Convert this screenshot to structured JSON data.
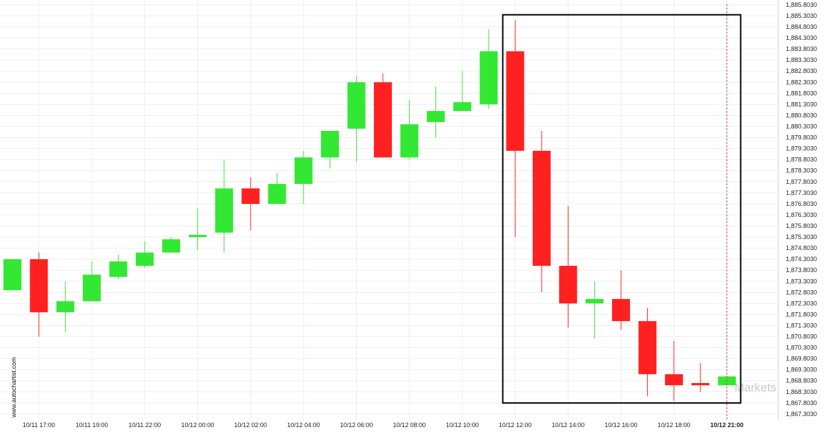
{
  "chart_data": {
    "type": "candlestick",
    "title": "",
    "xlabel": "",
    "ylabel": "",
    "ylim": [
      1867.2,
      1885.9
    ],
    "grid": true,
    "y_ticks": [
      "1,885.8030",
      "1,885.3030",
      "1,884.8030",
      "1,884.3030",
      "1,883.8030",
      "1,883.3030",
      "1,882.8030",
      "1,882.3030",
      "1,881.8030",
      "1,881.3030",
      "1,880.8030",
      "1,880.3030",
      "1,879.8030",
      "1,879.3030",
      "1,878.8030",
      "1,878.3030",
      "1,877.8030",
      "1,877.3030",
      "1,876.8030",
      "1,876.3030",
      "1,875.8030",
      "1,875.3030",
      "1,874.8030",
      "1,874.3030",
      "1,873.8030",
      "1,873.3030",
      "1,872.8030",
      "1,872.3030",
      "1,871.8030",
      "1,871.3030",
      "1,870.8030",
      "1,870.3030",
      "1,869.8030",
      "1,869.3030",
      "1,868.8030",
      "1,868.3030",
      "1,867.8030",
      "1,867.3030"
    ],
    "x_ticks": [
      {
        "index": 1,
        "label": "10/11 17:00"
      },
      {
        "index": 3,
        "label": "10/11 19:00"
      },
      {
        "index": 5,
        "label": "10/11 22:00"
      },
      {
        "index": 7,
        "label": "10/12 00:00"
      },
      {
        "index": 9,
        "label": "10/12 02:00"
      },
      {
        "index": 11,
        "label": "10/12 04:00"
      },
      {
        "index": 13,
        "label": "10/12 06:00"
      },
      {
        "index": 15,
        "label": "10/12 08:00"
      },
      {
        "index": 17,
        "label": "10/12 10:00"
      },
      {
        "index": 19,
        "label": "10/12 12:00"
      },
      {
        "index": 21,
        "label": "10/12 14:00"
      },
      {
        "index": 23,
        "label": "10/12 16:00"
      },
      {
        "index": 25,
        "label": "10/12 18:00"
      },
      {
        "index": 27,
        "label": "10/12 21:00",
        "bold": true
      }
    ],
    "candles": [
      {
        "o": 1872.9,
        "h": 1874.3,
        "l": 1872.9,
        "c": 1874.3
      },
      {
        "o": 1874.3,
        "h": 1874.6,
        "l": 1870.8,
        "c": 1871.9
      },
      {
        "o": 1871.9,
        "h": 1873.3,
        "l": 1871.0,
        "c": 1872.4
      },
      {
        "o": 1872.4,
        "h": 1874.2,
        "l": 1872.4,
        "c": 1873.6
      },
      {
        "o": 1873.5,
        "h": 1874.5,
        "l": 1873.4,
        "c": 1874.2
      },
      {
        "o": 1874.0,
        "h": 1875.1,
        "l": 1873.9,
        "c": 1874.6
      },
      {
        "o": 1874.6,
        "h": 1875.3,
        "l": 1874.6,
        "c": 1875.2
      },
      {
        "o": 1875.3,
        "h": 1876.6,
        "l": 1874.7,
        "c": 1875.4
      },
      {
        "o": 1875.5,
        "h": 1878.8,
        "l": 1874.6,
        "c": 1877.5
      },
      {
        "o": 1877.5,
        "h": 1878.0,
        "l": 1875.6,
        "c": 1876.8
      },
      {
        "o": 1876.8,
        "h": 1878.2,
        "l": 1876.8,
        "c": 1877.7
      },
      {
        "o": 1877.7,
        "h": 1879.2,
        "l": 1876.8,
        "c": 1878.9
      },
      {
        "o": 1878.9,
        "h": 1880.1,
        "l": 1878.4,
        "c": 1880.1
      },
      {
        "o": 1880.2,
        "h": 1882.6,
        "l": 1878.7,
        "c": 1882.3
      },
      {
        "o": 1882.3,
        "h": 1882.7,
        "l": 1878.9,
        "c": 1878.9
      },
      {
        "o": 1878.9,
        "h": 1881.5,
        "l": 1878.8,
        "c": 1880.4
      },
      {
        "o": 1880.5,
        "h": 1882.1,
        "l": 1879.8,
        "c": 1881.0
      },
      {
        "o": 1881.0,
        "h": 1882.8,
        "l": 1881.0,
        "c": 1881.4
      },
      {
        "o": 1881.3,
        "h": 1884.7,
        "l": 1881.1,
        "c": 1883.7
      },
      {
        "o": 1883.7,
        "h": 1885.1,
        "l": 1875.3,
        "c": 1879.2
      },
      {
        "o": 1879.2,
        "h": 1880.1,
        "l": 1872.8,
        "c": 1874.0
      },
      {
        "o": 1874.0,
        "h": 1876.7,
        "l": 1871.2,
        "c": 1872.3
      },
      {
        "o": 1872.3,
        "h": 1873.3,
        "l": 1870.7,
        "c": 1872.5
      },
      {
        "o": 1872.5,
        "h": 1873.8,
        "l": 1871.1,
        "c": 1871.5
      },
      {
        "o": 1871.5,
        "h": 1872.1,
        "l": 1868.1,
        "c": 1869.1
      },
      {
        "o": 1869.1,
        "h": 1870.6,
        "l": 1867.9,
        "c": 1868.6
      },
      {
        "o": 1868.7,
        "h": 1869.6,
        "l": 1868.3,
        "c": 1868.6
      },
      {
        "o": 1868.6,
        "h": 1869.0,
        "l": 1868.6,
        "c": 1869.0
      }
    ],
    "colors": {
      "up": "#33e833",
      "down": "#ff2020",
      "grid": "#eeeeee",
      "highlight": "#000000",
      "marker": "#d05050"
    },
    "highlight_range": {
      "from_index": 19,
      "to_index": 27,
      "y_top": 1885.35,
      "y_bottom": 1867.8
    },
    "current_marker_index": 27
  },
  "watermark": {
    "side_text": "www.autochartist.com",
    "brand_text": "Markets"
  }
}
